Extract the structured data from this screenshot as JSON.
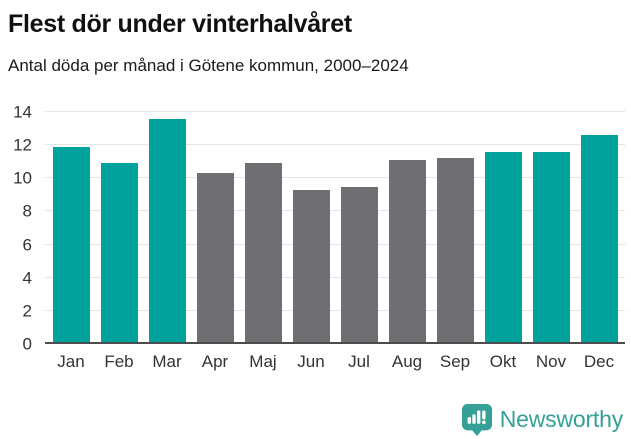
{
  "header": {
    "title": "Flest dör under vinterhalvåret",
    "subtitle": "Antal döda per månad i Götene kommun, 2000–2024"
  },
  "chart_data": {
    "type": "bar",
    "title": "Flest dör under vinterhalvåret",
    "subtitle": "Antal döda per månad i Götene kommun, 2000–2024",
    "categories": [
      "Jan",
      "Feb",
      "Mar",
      "Apr",
      "Maj",
      "Jun",
      "Jul",
      "Aug",
      "Sep",
      "Okt",
      "Nov",
      "Dec"
    ],
    "values": [
      11.9,
      10.9,
      13.6,
      10.3,
      10.9,
      9.3,
      9.5,
      11.1,
      11.2,
      11.6,
      11.6,
      12.6
    ],
    "highlighted": [
      true,
      true,
      true,
      false,
      false,
      false,
      false,
      false,
      false,
      true,
      true,
      true
    ],
    "xlabel": "",
    "ylabel": "",
    "ylim": [
      0,
      14
    ],
    "yticks": [
      0,
      2,
      4,
      6,
      8,
      10,
      12,
      14
    ],
    "grid": true,
    "legend": null,
    "highlight_color": "#00a29b",
    "base_color": "#6e6e73",
    "gridline_color": "#e5e5e5",
    "baseline_color": "#4d4d4d"
  },
  "footer": {
    "brand": "Newsworthy",
    "brand_color": "#35a095"
  }
}
